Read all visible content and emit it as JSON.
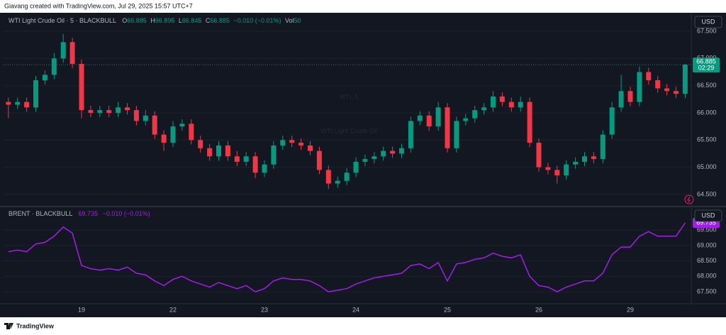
{
  "header": "Giavang created with TradingView.com, Jul 29, 2025 15:57 UTC+7",
  "footer": "TradingView",
  "chart_data": [
    {
      "type": "candlestick",
      "title": "WTI Light Crude Oil · 5 · BLACKBULL",
      "currency": "USD",
      "watermark": [
        "WTI, 5",
        "WTI Light Crude Oil"
      ],
      "legend": {
        "labels": [
          "O",
          "H",
          "L",
          "C"
        ],
        "values": [
          66.885,
          66.895,
          66.845,
          66.885
        ],
        "change": "−0.010 (−0.01%)",
        "volume_label": "Vol",
        "volume": 50
      },
      "countdown": "02:29",
      "up_color": "#089981",
      "down_color": "#f23645",
      "ylim": [
        64.29,
        67.84
      ],
      "yticks": [
        {
          "value": 64.5,
          "label": "64.500"
        },
        {
          "value": 65,
          "label": "65.000"
        },
        {
          "value": 65.5,
          "label": "65.500"
        },
        {
          "value": 66,
          "label": "66.000"
        },
        {
          "value": 66.5,
          "label": "66.500"
        },
        {
          "value": 67,
          "label": "67.000"
        },
        {
          "value": 67.5,
          "label": "67.500"
        }
      ],
      "open": [
        66.2,
        66.15,
        66.2,
        66.1,
        66.6,
        66.7,
        67.0,
        67.3,
        66.9,
        66.05,
        66.0,
        66.05,
        66.0,
        66.1,
        66.05,
        65.85,
        65.95,
        65.6,
        65.45,
        65.75,
        65.8,
        65.5,
        65.35,
        65.2,
        65.4,
        65.2,
        65.1,
        65.2,
        64.9,
        65.05,
        65.4,
        65.5,
        65.45,
        65.4,
        65.3,
        64.95,
        64.7,
        64.75,
        64.9,
        65.1,
        65.15,
        65.2,
        65.3,
        65.25,
        65.35,
        65.85,
        65.95,
        65.75,
        66.1,
        65.35,
        65.85,
        65.9,
        66.05,
        66.1,
        66.3,
        66.2,
        66.1,
        66.2,
        65.45,
        65.0,
        64.95,
        64.85,
        65.05,
        65.1,
        65.2,
        65.15,
        65.6,
        66.1,
        66.4,
        66.2,
        66.75,
        66.6,
        66.45,
        66.4,
        66.35
      ],
      "high": [
        66.28,
        66.28,
        66.28,
        66.68,
        66.78,
        67.1,
        67.45,
        67.38,
        66.98,
        66.13,
        66.13,
        66.13,
        66.2,
        66.18,
        66.13,
        66.05,
        66.03,
        65.68,
        65.85,
        65.88,
        65.88,
        65.58,
        65.43,
        65.48,
        65.48,
        65.3,
        65.28,
        65.28,
        65.13,
        65.48,
        65.58,
        65.58,
        65.53,
        65.48,
        65.38,
        65.03,
        64.83,
        64.98,
        65.18,
        65.23,
        65.28,
        65.38,
        65.38,
        65.43,
        65.93,
        66.03,
        66.03,
        66.2,
        66.18,
        65.93,
        65.98,
        66.13,
        66.18,
        66.4,
        66.38,
        66.28,
        66.3,
        66.28,
        65.53,
        65.08,
        65.03,
        65.13,
        65.18,
        65.28,
        65.28,
        65.68,
        66.2,
        66.7,
        66.48,
        66.85,
        66.83,
        66.68,
        66.53,
        66.48,
        66.9
      ],
      "low": [
        65.9,
        66.07,
        66.02,
        66.02,
        66.52,
        66.62,
        66.92,
        66.82,
        65.9,
        65.92,
        65.92,
        65.92,
        65.92,
        65.97,
        65.77,
        65.77,
        65.52,
        65.3,
        65.37,
        65.67,
        65.42,
        65.27,
        65.12,
        65.12,
        65.12,
        65.02,
        65.02,
        64.8,
        64.82,
        64.97,
        65.32,
        65.37,
        65.32,
        65.22,
        64.87,
        64.6,
        64.62,
        64.67,
        64.82,
        65.02,
        65.07,
        65.12,
        65.17,
        65.17,
        65.27,
        65.77,
        65.67,
        65.67,
        65.27,
        65.27,
        65.77,
        65.82,
        65.97,
        66.02,
        66.12,
        66.02,
        66.02,
        65.37,
        64.92,
        64.87,
        64.7,
        64.77,
        64.97,
        65.02,
        65.07,
        65.07,
        65.52,
        66.02,
        66.12,
        66.12,
        66.52,
        66.37,
        66.32,
        66.27,
        66.27
      ],
      "close": [
        66.15,
        66.2,
        66.1,
        66.6,
        66.7,
        67.0,
        67.3,
        66.9,
        66.05,
        66.0,
        66.05,
        66.0,
        66.1,
        66.05,
        65.85,
        65.95,
        65.6,
        65.45,
        65.75,
        65.8,
        65.5,
        65.35,
        65.2,
        65.4,
        65.2,
        65.1,
        65.2,
        64.9,
        65.05,
        65.4,
        65.5,
        65.45,
        65.4,
        65.3,
        64.95,
        64.7,
        64.75,
        64.9,
        65.1,
        65.15,
        65.2,
        65.3,
        65.25,
        65.35,
        65.85,
        65.95,
        65.75,
        66.1,
        65.35,
        65.85,
        65.9,
        66.05,
        66.1,
        66.3,
        66.2,
        66.1,
        66.2,
        65.45,
        65.0,
        64.95,
        64.85,
        65.05,
        65.1,
        65.2,
        65.15,
        65.6,
        66.1,
        66.4,
        66.2,
        66.75,
        66.6,
        66.45,
        66.4,
        66.35,
        66.885
      ]
    },
    {
      "type": "line",
      "title": "BRENT · BLACKBULL",
      "currency": "USD",
      "color": "#a21ee8",
      "change": "−0.010 (−0.01%)",
      "ylim": [
        67.11,
        70.24
      ],
      "yticks": [
        {
          "value": 67.5,
          "label": "67.500"
        },
        {
          "value": 68,
          "label": "68.000"
        },
        {
          "value": 68.5,
          "label": "68.500"
        },
        {
          "value": 69,
          "label": "69.000"
        },
        {
          "value": 69.5,
          "label": "69.500"
        }
      ],
      "categories": [
        null,
        null,
        null,
        null,
        null,
        null,
        null,
        null,
        "19",
        null,
        null,
        null,
        null,
        null,
        null,
        null,
        null,
        null,
        "22",
        null,
        null,
        null,
        null,
        null,
        null,
        null,
        null,
        null,
        "23",
        null,
        null,
        null,
        null,
        null,
        null,
        null,
        null,
        null,
        "24",
        null,
        null,
        null,
        null,
        null,
        null,
        null,
        null,
        null,
        "25",
        null,
        null,
        null,
        null,
        null,
        null,
        null,
        null,
        null,
        "26",
        null,
        null,
        null,
        null,
        null,
        null,
        null,
        null,
        null,
        "29",
        null,
        null,
        null,
        null,
        null,
        null
      ],
      "values": [
        68.8,
        68.85,
        68.8,
        69.05,
        69.1,
        69.3,
        69.6,
        69.4,
        68.35,
        68.25,
        68.2,
        68.25,
        68.2,
        68.3,
        68.1,
        68.05,
        67.85,
        67.7,
        67.9,
        68.0,
        67.85,
        67.75,
        67.65,
        67.8,
        67.7,
        67.6,
        67.7,
        67.5,
        67.6,
        67.85,
        67.95,
        67.9,
        67.9,
        67.85,
        67.7,
        67.5,
        67.55,
        67.6,
        67.75,
        67.85,
        67.95,
        68.0,
        68.05,
        68.1,
        68.35,
        68.4,
        68.25,
        68.45,
        67.85,
        68.4,
        68.45,
        68.55,
        68.6,
        68.75,
        68.65,
        68.6,
        68.7,
        68.0,
        67.7,
        67.65,
        67.5,
        67.65,
        67.75,
        67.85,
        67.85,
        68.1,
        68.7,
        68.95,
        68.95,
        69.3,
        69.45,
        69.3,
        69.3,
        69.3,
        69.735
      ]
    }
  ]
}
